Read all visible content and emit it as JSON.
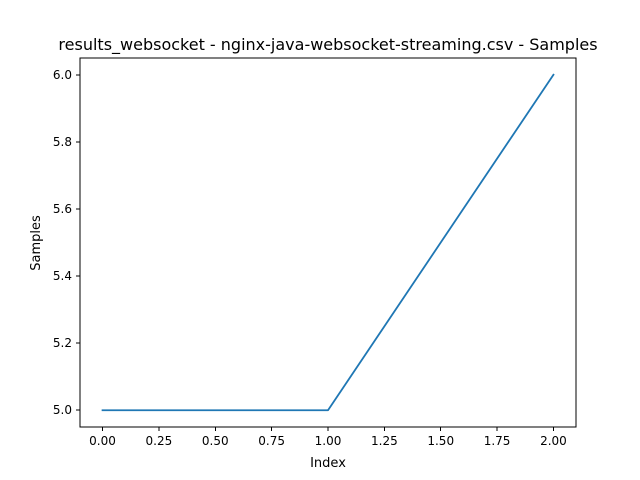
{
  "chart_data": {
    "type": "line",
    "title": "results_websocket - nginx-java-websocket-streaming.csv - Samples",
    "xlabel": "Index",
    "ylabel": "Samples",
    "x": [
      0,
      1,
      2
    ],
    "series": [
      {
        "values": [
          5.0,
          5.0,
          6.0
        ],
        "color": "#1f77b4"
      }
    ],
    "xlim": [
      -0.1,
      2.1
    ],
    "ylim": [
      4.95,
      6.05
    ],
    "xticks": [
      0.0,
      0.25,
      0.5,
      0.75,
      1.0,
      1.25,
      1.5,
      1.75,
      2.0
    ],
    "xtick_labels": [
      "0.00",
      "0.25",
      "0.50",
      "0.75",
      "1.00",
      "1.25",
      "1.50",
      "1.75",
      "2.00"
    ],
    "yticks": [
      5.0,
      5.2,
      5.4,
      5.6,
      5.8,
      6.0
    ],
    "ytick_labels": [
      "5.0",
      "5.2",
      "5.4",
      "5.6",
      "5.8",
      "6.0"
    ],
    "grid": false,
    "legend": "none"
  }
}
